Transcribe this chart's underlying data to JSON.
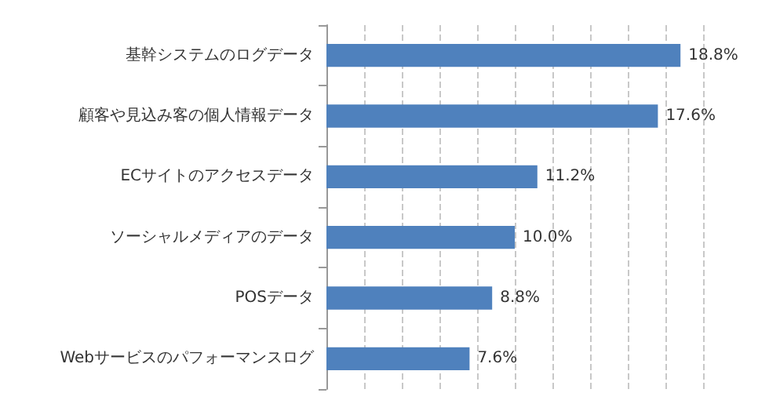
{
  "chart_data": {
    "type": "bar",
    "orientation": "horizontal",
    "categories": [
      "基幹システムのログデータ",
      "顧客や見込み客の個人情報データ",
      "ECサイトのアクセスデータ",
      "ソーシャルメディアのデータ",
      "POSデータ",
      "Webサービスのパフォーマンスログ"
    ],
    "values": [
      18.8,
      17.6,
      11.2,
      10.0,
      8.8,
      7.6
    ],
    "value_labels": [
      "18.8%",
      "17.6%",
      "11.2%",
      "10.0%",
      "8.8%",
      "7.6%"
    ],
    "color": "#4f81bd",
    "xlim": [
      0,
      20
    ],
    "xticks": [
      {
        "value": 0,
        "label": null
      },
      {
        "value": 2,
        "label": null
      },
      {
        "value": 4,
        "label": null
      },
      {
        "value": 6,
        "label": null
      },
      {
        "value": 8,
        "label": null
      },
      {
        "value": 10,
        "label": null
      },
      {
        "value": 12,
        "label": null
      },
      {
        "value": 14,
        "label": null
      },
      {
        "value": 16,
        "label": null
      },
      {
        "value": 18,
        "label": null
      },
      {
        "value": 20,
        "label": null
      }
    ],
    "grid": "x",
    "tick_labels": "y"
  }
}
